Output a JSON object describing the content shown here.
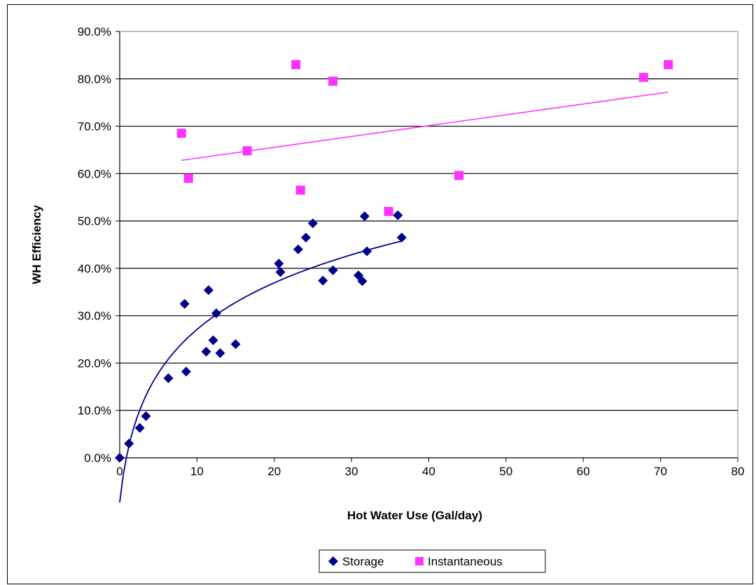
{
  "chart_data": {
    "type": "scatter",
    "title": "",
    "xlabel": "Hot Water Use (Gal/day)",
    "ylabel": "WH Efficiency",
    "xlim": [
      0,
      80
    ],
    "ylim": [
      0,
      0.9
    ],
    "x_ticks": [
      "0",
      "10",
      "20",
      "30",
      "40",
      "50",
      "60",
      "70",
      "80"
    ],
    "y_ticks": [
      "0.0%",
      "10.0%",
      "20.0%",
      "30.0%",
      "40.0%",
      "50.0%",
      "60.0%",
      "70.0%",
      "80.0%",
      "90.0%"
    ],
    "grid": "horizontal",
    "legend_position": "bottom",
    "series": [
      {
        "name": "Storage",
        "marker": "diamond",
        "color": "#00008B",
        "points": [
          [
            0,
            0.0
          ],
          [
            1.2,
            0.03
          ],
          [
            2.6,
            0.063
          ],
          [
            3.4,
            0.088
          ],
          [
            6.3,
            0.168
          ],
          [
            8.4,
            0.325
          ],
          [
            8.6,
            0.182
          ],
          [
            11.2,
            0.224
          ],
          [
            11.5,
            0.354
          ],
          [
            12.1,
            0.248
          ],
          [
            12.5,
            0.305
          ],
          [
            13.0,
            0.221
          ],
          [
            15.0,
            0.24
          ],
          [
            20.6,
            0.41
          ],
          [
            20.8,
            0.392
          ],
          [
            23.1,
            0.44
          ],
          [
            24.1,
            0.465
          ],
          [
            25.0,
            0.495
          ],
          [
            26.3,
            0.374
          ],
          [
            27.6,
            0.396
          ],
          [
            30.9,
            0.385
          ],
          [
            31.4,
            0.373
          ],
          [
            31.7,
            0.51
          ],
          [
            32.0,
            0.436
          ],
          [
            36.0,
            0.512
          ],
          [
            36.5,
            0.465
          ]
        ],
        "trendline": "logarithmic"
      },
      {
        "name": "Instantaneous",
        "marker": "square",
        "color": "#FF33FF",
        "points": [
          [
            8.0,
            0.685
          ],
          [
            8.9,
            0.59
          ],
          [
            16.5,
            0.648
          ],
          [
            22.8,
            0.83
          ],
          [
            23.4,
            0.565
          ],
          [
            27.6,
            0.795
          ],
          [
            34.8,
            0.52
          ],
          [
            43.9,
            0.596
          ],
          [
            67.8,
            0.803
          ],
          [
            71.0,
            0.83
          ]
        ],
        "trendline": "linear",
        "trendline_range": [
          8,
          71
        ],
        "trendline_values": [
          0.628,
          0.772
        ]
      }
    ]
  }
}
